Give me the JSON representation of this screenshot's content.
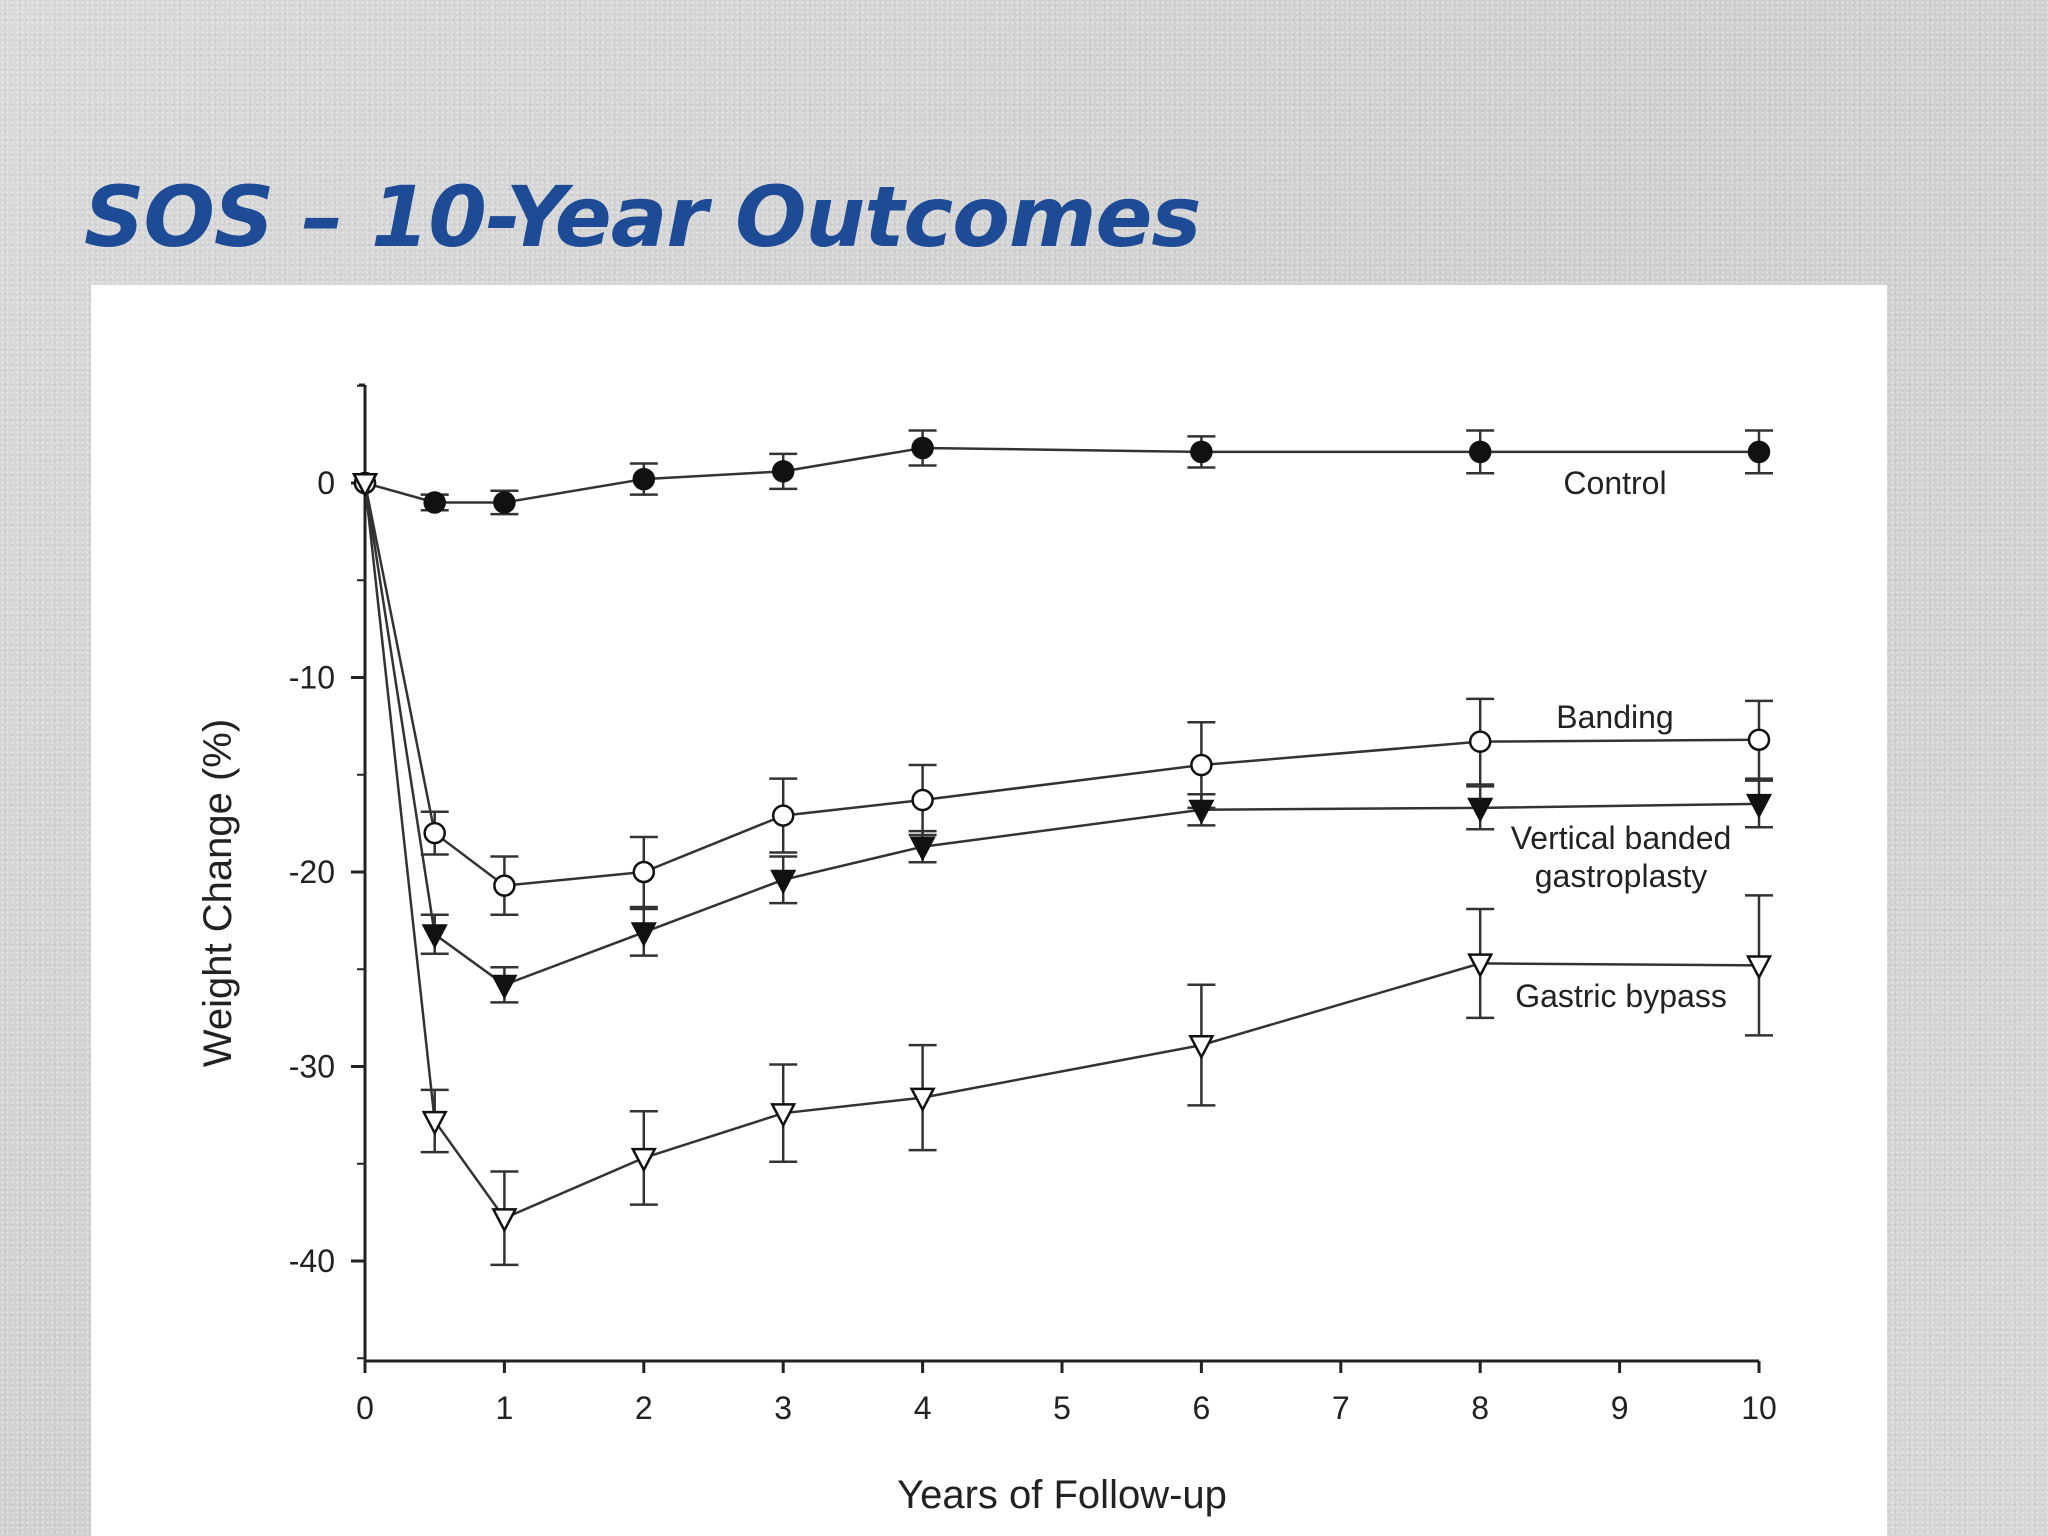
{
  "slide": {
    "title": "SOS – 10-Year Outcomes"
  },
  "chart_data": {
    "type": "line",
    "xlabel": "Years of Follow-up",
    "ylabel": "Weight Change (%)",
    "xlim": [
      0,
      10
    ],
    "ylim": [
      -45,
      5
    ],
    "xticks": [
      0,
      1,
      2,
      3,
      4,
      5,
      6,
      7,
      8,
      9,
      10
    ],
    "yticks": [
      0,
      -10,
      -20,
      -30,
      -40
    ],
    "grid": false,
    "legend": "inline labels at right end of each line",
    "series": [
      {
        "name": "Control",
        "marker": "filled-circle",
        "x": [
          0,
          0.5,
          1,
          2,
          3,
          4,
          6,
          8,
          10
        ],
        "y": [
          0,
          -1,
          -1,
          0.2,
          0.6,
          1.8,
          1.6,
          1.6,
          1.6
        ],
        "err": [
          0,
          0.4,
          0.6,
          0.8,
          0.9,
          0.9,
          0.8,
          1.1,
          1.1
        ]
      },
      {
        "name": "Banding",
        "marker": "open-circle",
        "x": [
          0,
          0.5,
          1,
          2,
          3,
          4,
          6,
          8,
          10
        ],
        "y": [
          0,
          -18,
          -20.7,
          -20,
          -17.1,
          -16.3,
          -14.5,
          -13.3,
          -13.2
        ],
        "err": [
          0,
          1.1,
          1.5,
          1.8,
          1.9,
          1.8,
          2.2,
          2.2,
          2.0
        ]
      },
      {
        "name": "Vertical banded gastroplasty",
        "marker": "filled-triangle-down",
        "x": [
          0,
          0.5,
          1,
          2,
          3,
          4,
          6,
          8,
          10
        ],
        "y": [
          0,
          -23.2,
          -25.8,
          -23.1,
          -20.4,
          -18.7,
          -16.8,
          -16.7,
          -16.5
        ],
        "err": [
          0,
          1.0,
          0.9,
          1.2,
          1.2,
          0.8,
          0.8,
          1.1,
          1.2
        ]
      },
      {
        "name": "Gastric bypass",
        "marker": "open-triangle-down",
        "x": [
          0,
          0.5,
          1,
          2,
          3,
          4,
          6,
          8,
          10
        ],
        "y": [
          0,
          -32.8,
          -37.8,
          -34.7,
          -32.4,
          -31.6,
          -28.9,
          -24.7,
          -24.8
        ],
        "err": [
          0,
          1.6,
          2.4,
          2.4,
          2.5,
          2.7,
          3.1,
          2.8,
          3.6
        ]
      }
    ],
    "labels": [
      {
        "series": "Control",
        "lines": [
          "Control"
        ]
      },
      {
        "series": "Banding",
        "lines": [
          "Banding"
        ]
      },
      {
        "series": "Vertical banded gastroplasty",
        "lines": [
          "Vertical banded",
          "gastroplasty"
        ]
      },
      {
        "series": "Gastric bypass",
        "lines": [
          "Gastric bypass"
        ]
      }
    ]
  }
}
